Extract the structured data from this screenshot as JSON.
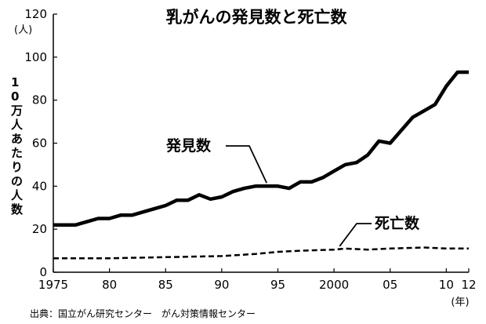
{
  "chart_data": {
    "type": "line",
    "title": "乳がんの発見数と死亡数",
    "ylabel": "10万人あたりの人数",
    "y_unit": "(人)",
    "x_unit": "(年)",
    "ylim": [
      0,
      120
    ],
    "yticks": [
      0,
      20,
      40,
      60,
      80,
      100,
      120
    ],
    "xlim": [
      1975,
      2012
    ],
    "xticks": [
      {
        "value": 1975,
        "label": "1975"
      },
      {
        "value": 1980,
        "label": "80"
      },
      {
        "value": 1985,
        "label": "85"
      },
      {
        "value": 1990,
        "label": "90"
      },
      {
        "value": 1995,
        "label": "95"
      },
      {
        "value": 2000,
        "label": "2000"
      },
      {
        "value": 2005,
        "label": "05"
      },
      {
        "value": 2010,
        "label": "10"
      },
      {
        "value": 2012,
        "label": "12"
      }
    ],
    "grid": false,
    "series": [
      {
        "name": "発見数",
        "style": "solid",
        "color": "#000000",
        "x": [
          1975,
          1976,
          1977,
          1978,
          1979,
          1980,
          1981,
          1982,
          1983,
          1984,
          1985,
          1986,
          1987,
          1988,
          1989,
          1990,
          1991,
          1992,
          1993,
          1994,
          1995,
          1996,
          1997,
          1998,
          1999,
          2000,
          2001,
          2002,
          2003,
          2004,
          2005,
          2006,
          2007,
          2008,
          2009,
          2010,
          2011,
          2012
        ],
        "values": [
          22,
          22,
          22,
          23.5,
          25,
          25,
          26.5,
          26.5,
          28,
          29.5,
          31,
          33.5,
          33.5,
          36,
          34,
          35,
          37.5,
          39,
          40,
          40,
          40,
          39,
          42,
          42,
          44,
          47,
          50,
          51,
          54.5,
          61,
          60,
          66,
          72,
          75,
          78,
          86.5,
          93,
          93
        ]
      },
      {
        "name": "死亡数",
        "style": "dashed",
        "color": "#000000",
        "x": [
          1975,
          1980,
          1985,
          1990,
          1993,
          1995,
          1997,
          2000,
          2001,
          2003,
          2005,
          2008,
          2010,
          2012
        ],
        "values": [
          6.5,
          6.5,
          7,
          7.5,
          8.5,
          9.5,
          10,
          10.5,
          11,
          10.5,
          11,
          11.5,
          11,
          11
        ]
      }
    ]
  },
  "source": "出典：国立がん研究センター　がん対策情報センター"
}
